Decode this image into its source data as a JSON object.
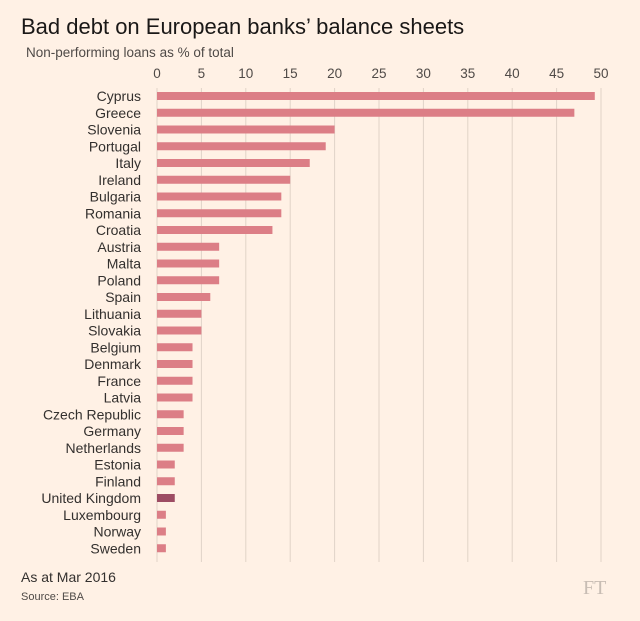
{
  "chart_data": {
    "type": "bar",
    "orientation": "horizontal",
    "title": "Bad debt on European banks’ balance sheets",
    "subtitle": "Non-performing loans as % of total",
    "xlabel": "",
    "ylabel": "",
    "xlim": [
      0,
      50
    ],
    "x_ticks": [
      0,
      5,
      10,
      15,
      20,
      25,
      30,
      35,
      40,
      45,
      50
    ],
    "grid": true,
    "categories": [
      "Cyprus",
      "Greece",
      "Slovenia",
      "Portugal",
      "Italy",
      "Ireland",
      "Bulgaria",
      "Romania",
      "Croatia",
      "Austria",
      "Malta",
      "Poland",
      "Spain",
      "Lithuania",
      "Slovakia",
      "Belgium",
      "Denmark",
      "France",
      "Latvia",
      "Czech Republic",
      "Germany",
      "Netherlands",
      "Estonia",
      "Finland",
      "United Kingdom",
      "Luxembourg",
      "Norway",
      "Sweden"
    ],
    "values": [
      49.3,
      47.0,
      20.0,
      19.0,
      17.2,
      15.0,
      14.0,
      14.0,
      13.0,
      7.0,
      7.0,
      7.0,
      6.0,
      5.0,
      5.0,
      4.0,
      4.0,
      4.0,
      4.0,
      3.0,
      3.0,
      3.0,
      2.0,
      2.0,
      2.0,
      1.0,
      1.0,
      1.0
    ],
    "highlight_category": "United Kingdom",
    "bar_color": "#dc7e86",
    "highlight_color": "#9d4c63",
    "grid_color": "#e0d4c8"
  },
  "footnote": "As at Mar 2016",
  "source": "Source: EBA",
  "logo_text": "FT"
}
